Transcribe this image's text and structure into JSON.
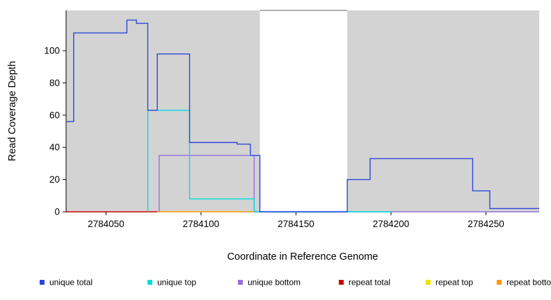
{
  "chart_data": {
    "type": "line",
    "title": "",
    "xlabel": "Coordinate in Reference Genome",
    "ylabel": "Read Coverage Depth",
    "xlim": [
      2784029,
      2784278
    ],
    "ylim": [
      0,
      125
    ],
    "xticks": [
      2784050,
      2784100,
      2784150,
      2784200,
      2784250
    ],
    "yticks": [
      0,
      20,
      40,
      60,
      80,
      100
    ],
    "grid": "off",
    "plot_background": "#d3d3d3",
    "highlight_region": {
      "x0": 2784131,
      "x1": 2784177,
      "color": "#ffffff",
      "top_border": "#606060"
    },
    "legend_position": "bottom",
    "series": [
      {
        "name": "unique total",
        "color": "#2c46d8",
        "points": [
          [
            2784029,
            56
          ],
          [
            2784033,
            56
          ],
          [
            2784033,
            111
          ],
          [
            2784061,
            111
          ],
          [
            2784061,
            119
          ],
          [
            2784066,
            119
          ],
          [
            2784066,
            117
          ],
          [
            2784072,
            117
          ],
          [
            2784072,
            63
          ],
          [
            2784077,
            63
          ],
          [
            2784077,
            98
          ],
          [
            2784094,
            98
          ],
          [
            2784094,
            43
          ],
          [
            2784119,
            43
          ],
          [
            2784119,
            42
          ],
          [
            2784126,
            42
          ],
          [
            2784126,
            35
          ],
          [
            2784131,
            35
          ],
          [
            2784131,
            0
          ],
          [
            2784177,
            0
          ],
          [
            2784177,
            20
          ],
          [
            2784189,
            20
          ],
          [
            2784189,
            33
          ],
          [
            2784243,
            33
          ],
          [
            2784243,
            13
          ],
          [
            2784252,
            13
          ],
          [
            2784252,
            2
          ],
          [
            2784278,
            2
          ]
        ]
      },
      {
        "name": "unique top",
        "color": "#00dde0",
        "points": [
          [
            2784072,
            0
          ],
          [
            2784072,
            63
          ],
          [
            2784094,
            63
          ],
          [
            2784094,
            8
          ],
          [
            2784128,
            8
          ],
          [
            2784128,
            0
          ],
          [
            2784200,
            0
          ]
        ]
      },
      {
        "name": "unique bottom",
        "color": "#9370db",
        "points": [
          [
            2784078,
            0
          ],
          [
            2784078,
            35
          ],
          [
            2784128,
            35
          ],
          [
            2784128,
            0
          ],
          [
            2784278,
            0
          ]
        ]
      },
      {
        "name": "repeat total",
        "color": "#cc0000",
        "points": [
          [
            2784029,
            0
          ],
          [
            2784077,
            0
          ]
        ]
      },
      {
        "name": "repeat top",
        "color": "#f0e000",
        "points": []
      },
      {
        "name": "repeat bottom",
        "color": "#ff9900",
        "points": [
          [
            2784077,
            0
          ],
          [
            2784128,
            0
          ]
        ]
      }
    ]
  }
}
